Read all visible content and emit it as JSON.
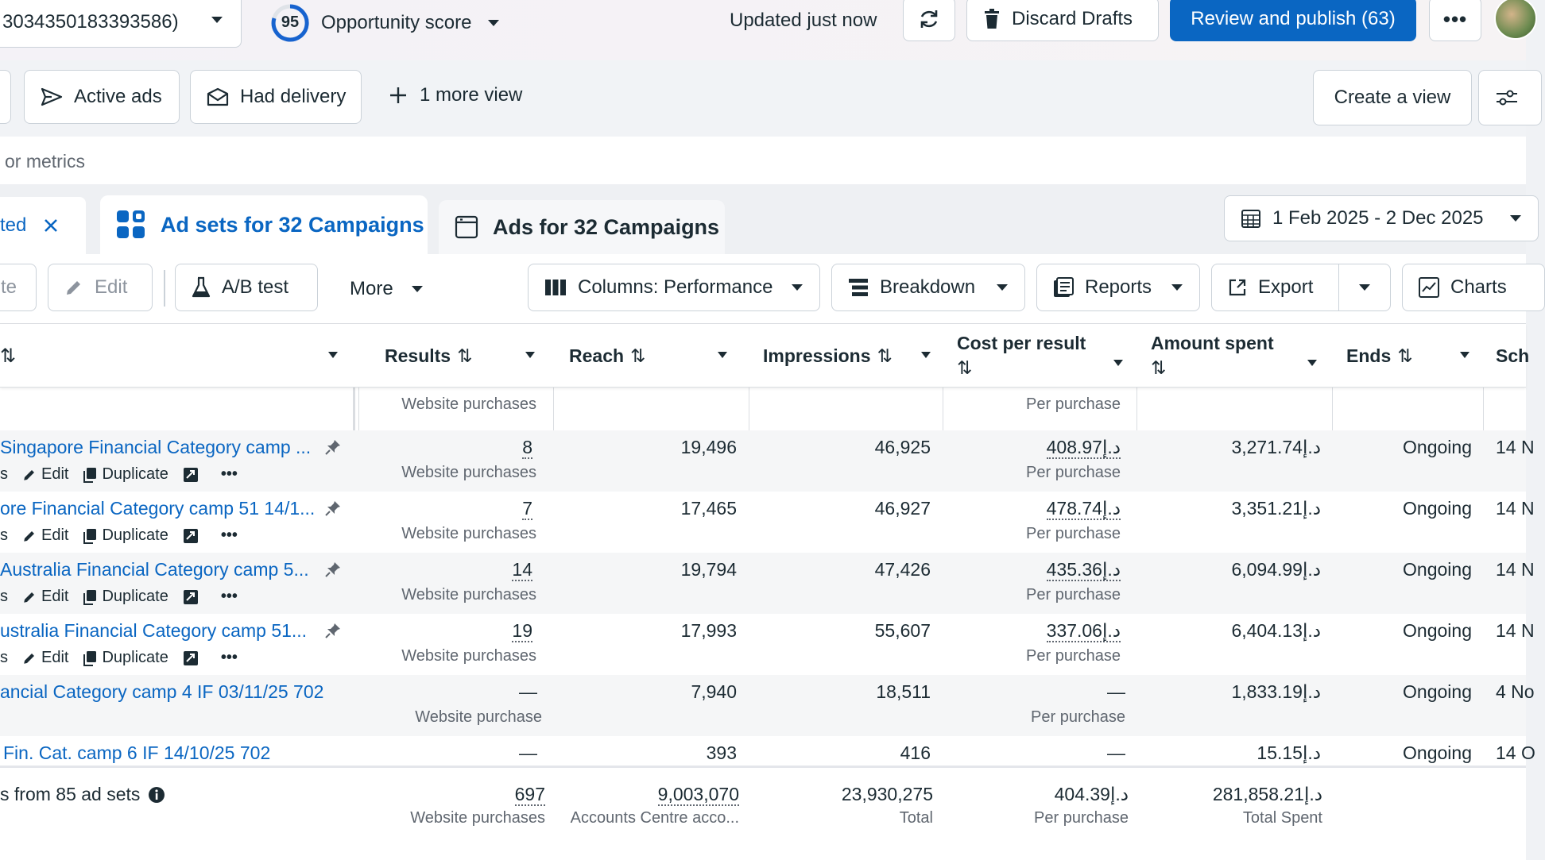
{
  "topbar": {
    "account_id": "3034350183393586)",
    "score_value": "95",
    "score_label": "Opportunity score",
    "updated": "Updated just now",
    "discard": "Discard Drafts",
    "review": "Review and publish (63)",
    "colors": {
      "primary": "#0a66c2",
      "text": "#1c2b33"
    }
  },
  "views": {
    "active_ads": "Active ads",
    "had_delivery": "Had delivery",
    "more_view": "1 more view",
    "create_view": "Create a view"
  },
  "search": {
    "hint": "or metrics"
  },
  "tabs": {
    "selected_chip": "ted",
    "adsets": "Ad sets for 32 Campaigns",
    "ads": "Ads for 32 Campaigns",
    "date_range": "1 Feb 2025 - 2 Dec 2025"
  },
  "toolbar": {
    "duplicate_partial": "te",
    "edit": "Edit",
    "ab_test": "A/B test",
    "more": "More",
    "columns": "Columns: Performance",
    "breakdown": "Breakdown",
    "reports": "Reports",
    "export": "Export",
    "charts": "Charts"
  },
  "table": {
    "headers": {
      "results": "Results",
      "reach": "Reach",
      "impressions": "Impressions",
      "cost_per_result": "Cost per result",
      "amount_spent": "Amount spent",
      "ends": "Ends",
      "schedule": "Sch"
    },
    "rows": [
      {
        "name": "Singapore Financial Category camp ...",
        "actions_prefix": "s",
        "edit": "Edit",
        "duplicate": "Duplicate",
        "results": "8",
        "results_sub": "Website purchases",
        "reach": "19,496",
        "impressions": "46,925",
        "cpr": "408.97د.إ",
        "cpr_sub": "Per purchase",
        "spent": "3,271.74د.إ",
        "ends": "Ongoing",
        "sched": "14 N"
      },
      {
        "name": "ore Financial Category camp 51 14/1...",
        "actions_prefix": "s",
        "edit": "Edit",
        "duplicate": "Duplicate",
        "results": "7",
        "results_sub": "Website purchases",
        "reach": "17,465",
        "impressions": "46,927",
        "cpr": "478.74د.إ",
        "cpr_sub": "Per purchase",
        "spent": "3,351.21د.إ",
        "ends": "Ongoing",
        "sched": "14 N"
      },
      {
        "name": "Australia Financial Category camp 5...",
        "actions_prefix": "s",
        "edit": "Edit",
        "duplicate": "Duplicate",
        "results": "14",
        "results_sub": "Website purchases",
        "reach": "19,794",
        "impressions": "47,426",
        "cpr": "435.36د.إ",
        "cpr_sub": "Per purchase",
        "spent": "6,094.99د.إ",
        "ends": "Ongoing",
        "sched": "14 N"
      },
      {
        "name": "ustralia Financial Category camp 51...",
        "actions_prefix": "s",
        "edit": "Edit",
        "duplicate": "Duplicate",
        "results": "19",
        "results_sub": "Website purchases",
        "reach": "17,993",
        "impressions": "55,607",
        "cpr": "337.06د.إ",
        "cpr_sub": "Per purchase",
        "spent": "6,404.13د.إ",
        "ends": "Ongoing",
        "sched": "14 N"
      },
      {
        "name": "ancial Category camp 4 IF 03/11/25 702",
        "results": "—",
        "results_sub": "Website purchase",
        "reach": "7,940",
        "impressions": "18,511",
        "cpr": "—",
        "cpr_sub": "Per purchase",
        "spent": "1,833.19د.إ",
        "ends": "Ongoing",
        "sched": "4 No"
      },
      {
        "name": "Fin. Cat. camp 6 IF 14/10/25 702",
        "results": "—",
        "reach": "393",
        "impressions": "416",
        "cpr": "—",
        "spent": "15.15د.إ",
        "ends": "Ongoing",
        "sched": "14 O"
      }
    ],
    "top_partial": {
      "results_sub": "Website purchases",
      "cpr_sub": "Per purchase"
    },
    "totals": {
      "label": "s from 85 ad sets",
      "results": "697",
      "results_sub": "Website purchases",
      "reach": "9,003,070",
      "reach_sub": "Accounts Centre acco...",
      "impressions": "23,930,275",
      "impressions_sub": "Total",
      "cpr": "404.39د.إ",
      "cpr_sub": "Per purchase",
      "spent": "281,858.21د.إ",
      "spent_sub": "Total Spent"
    }
  }
}
